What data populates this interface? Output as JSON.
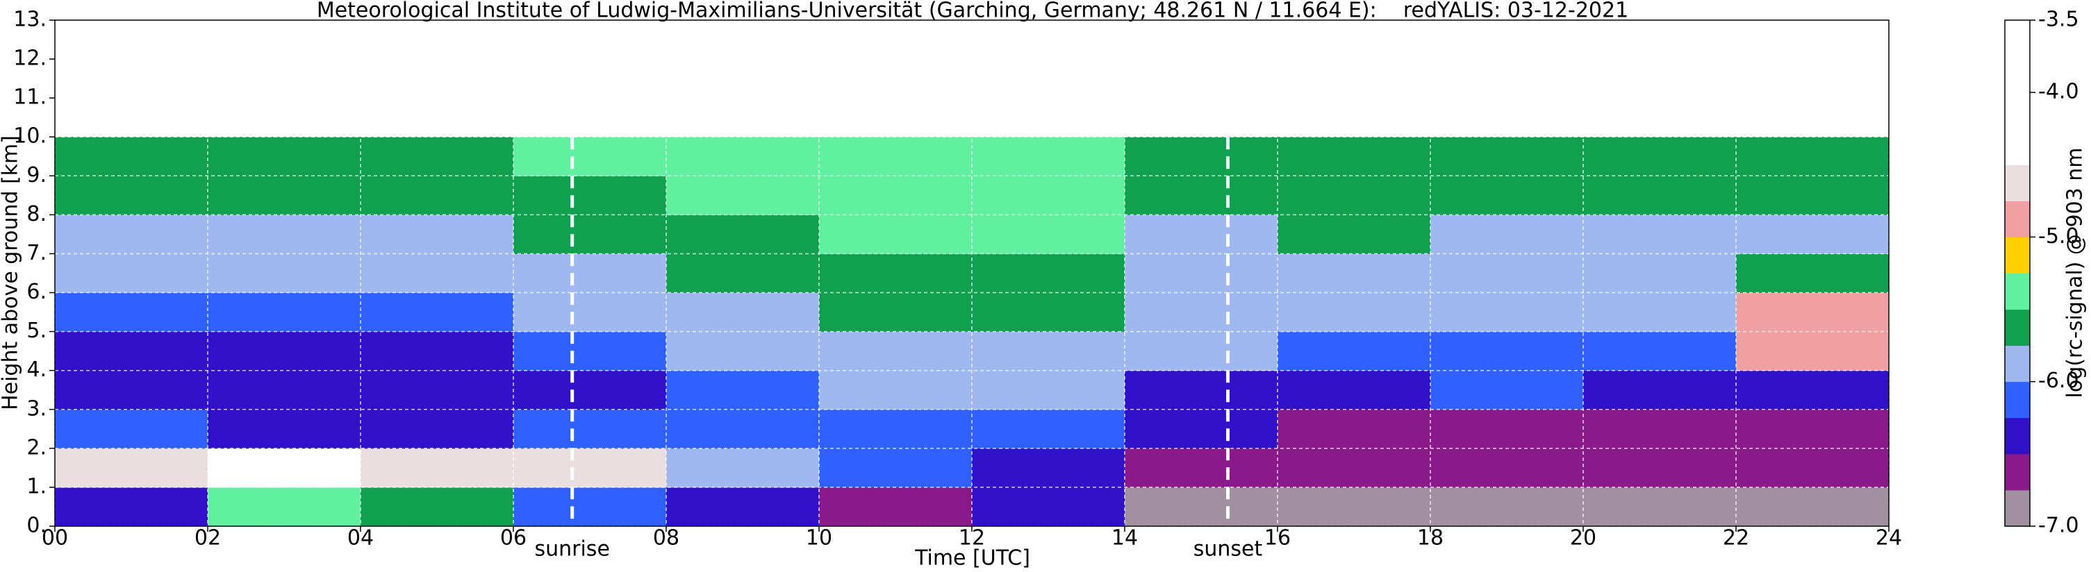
{
  "chart_data": {
    "type": "heatmap",
    "title": "Meteorological Institute of Ludwig-Maximilians-Universität (Garching, Germany; 48.261 N / 11.664 E):    redYALIS: 03-12-2021",
    "xlabel": "Time [UTC]",
    "ylabel": "Height above ground [km]",
    "xlim": [
      0,
      24
    ],
    "ylim": [
      0,
      13
    ],
    "xticks": [
      {
        "value": 0,
        "label": "00"
      },
      {
        "value": 2,
        "label": "02"
      },
      {
        "value": 4,
        "label": "04"
      },
      {
        "value": 6,
        "label": "06"
      },
      {
        "value": 8,
        "label": "08"
      },
      {
        "value": 10,
        "label": "10"
      },
      {
        "value": 12,
        "label": "12"
      },
      {
        "value": 14,
        "label": "14"
      },
      {
        "value": 16,
        "label": "16"
      },
      {
        "value": 18,
        "label": "18"
      },
      {
        "value": 20,
        "label": "20"
      },
      {
        "value": 22,
        "label": "22"
      },
      {
        "value": 24,
        "label": "24"
      }
    ],
    "yticks": [
      {
        "value": 0,
        "label": "0."
      },
      {
        "value": 1,
        "label": "1."
      },
      {
        "value": 2,
        "label": "2."
      },
      {
        "value": 3,
        "label": "3."
      },
      {
        "value": 4,
        "label": "4."
      },
      {
        "value": 5,
        "label": "5."
      },
      {
        "value": 6,
        "label": "6."
      },
      {
        "value": 7,
        "label": "7."
      },
      {
        "value": 8,
        "label": "8."
      },
      {
        "value": 9,
        "label": "9."
      },
      {
        "value": 10,
        "label": "10."
      },
      {
        "value": 11,
        "label": "11."
      },
      {
        "value": 12,
        "label": "12."
      },
      {
        "value": 13,
        "label": "13."
      }
    ],
    "grid": true,
    "x_edges": [
      0,
      2,
      4,
      6,
      8,
      10,
      12,
      14,
      16,
      18,
      20,
      22,
      24
    ],
    "y_edges": [
      0,
      1,
      2,
      3,
      4,
      5,
      6,
      7,
      8,
      9,
      10
    ],
    "values": [
      [
        -6.3,
        -4.6,
        -6.2,
        -6.5,
        -6.3,
        -6.1,
        -5.9,
        -5.8,
        -5.7,
        -5.6
      ],
      [
        -5.3,
        -4.4,
        -6.3,
        -6.5,
        -6.3,
        -6.1,
        -5.9,
        -5.8,
        -5.7,
        -5.6
      ],
      [
        -5.6,
        -4.6,
        -6.4,
        -6.5,
        -6.3,
        -6.1,
        -5.9,
        -5.8,
        -5.7,
        -5.6
      ],
      [
        -6.2,
        -4.7,
        -6.2,
        -6.3,
        -6.1,
        -5.9,
        -5.8,
        -5.7,
        -5.6,
        -5.5
      ],
      [
        -6.5,
        -5.8,
        -6.1,
        -6.1,
        -6.0,
        -5.8,
        -5.7,
        -5.6,
        -5.5,
        -5.4
      ],
      [
        -6.6,
        -6.2,
        -6.1,
        -5.9,
        -5.8,
        -5.7,
        -5.6,
        -5.5,
        -5.4,
        -5.3
      ],
      [
        -6.4,
        -6.3,
        -6.1,
        -5.9,
        -5.8,
        -5.7,
        -5.6,
        -5.5,
        -5.4,
        -5.4
      ],
      [
        -6.8,
        -6.6,
        -6.5,
        -6.4,
        -5.9,
        -6.0,
        -5.9,
        -5.8,
        -5.7,
        -5.7
      ],
      [
        -6.9,
        -6.7,
        -6.6,
        -6.4,
        -6.1,
        -6.0,
        -5.9,
        -5.7,
        -5.6,
        -5.6
      ],
      [
        -6.9,
        -6.7,
        -6.6,
        -6.2,
        -6.1,
        -6.0,
        -5.9,
        -5.8,
        -5.7,
        -5.7
      ],
      [
        -6.9,
        -6.7,
        -6.6,
        -6.4,
        -6.2,
        -6.0,
        -5.9,
        -5.8,
        -5.7,
        -5.7
      ],
      [
        -6.9,
        -6.7,
        -6.6,
        -6.3,
        -4.8,
        -5.0,
        -5.6,
        -5.8,
        -5.7,
        -5.7
      ]
    ],
    "colorbar": {
      "label": "log(rc-signal) @ 903 nm",
      "clim": [
        -7,
        -3.5
      ],
      "ticks": [
        {
          "value": -7,
          "label": "-7.0"
        },
        {
          "value": -6,
          "label": "-6.0"
        },
        {
          "value": -5,
          "label": "-5.0"
        },
        {
          "value": -4,
          "label": "-4.0"
        },
        -3.5
      ],
      "colors": [
        "#a090a0",
        "#8a1a8a",
        "#3010c8",
        "#3060ff",
        "#a0b8f0",
        "#10a050",
        "#60f0a0",
        "#ffd000",
        "#f0a0a0",
        "#eadede",
        "#ffffff",
        "#ffffff",
        "#ffffff",
        "#ffffff"
      ]
    },
    "annotations": [
      {
        "text": "sunrise",
        "x": 6.77
      },
      {
        "text": "sunset",
        "x": 15.35
      }
    ]
  }
}
